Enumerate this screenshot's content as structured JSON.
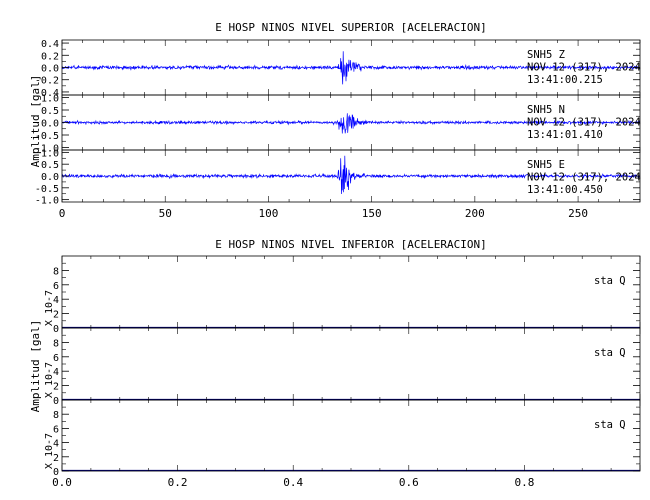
{
  "chart_data": [
    {
      "type": "line",
      "title": "E HOSP NINOS NIVEL SUPERIOR [ACELERACION]",
      "ylabel": "Amplitud [gal]",
      "xlabel": "",
      "xlim": [
        0,
        280
      ],
      "x_ticks": [
        0,
        50,
        100,
        150,
        200,
        250
      ],
      "line_color": "#0000ff",
      "panels": [
        {
          "ylim": [
            -0.45,
            0.45
          ],
          "y_ticks": [
            "0.4",
            "0.2",
            "0.0",
            "-0.2",
            "-0.4"
          ],
          "y_tick_values": [
            0.4,
            0.2,
            0.0,
            -0.2,
            -0.4
          ],
          "labels": [
            "SNH5   Z",
            "NOV 12 (317), 2024",
            "13:41:00.215"
          ],
          "noise_amplitude": 0.03,
          "event": {
            "onset": 133,
            "peak_time": 136,
            "peak_amplitude": 0.38
          }
        },
        {
          "ylim": [
            -1.1,
            1.1
          ],
          "y_ticks": [
            "1.0",
            "0.5",
            "0.0",
            "-0.5",
            "-1.0"
          ],
          "y_tick_values": [
            1.0,
            0.5,
            0.0,
            -0.5,
            -1.0
          ],
          "labels": [
            "SNH5   N",
            "NOV 12 (317), 2024",
            "13:41:01.410"
          ],
          "noise_amplitude": 0.06,
          "event": {
            "onset": 133,
            "peak_time": 137,
            "peak_amplitude": 0.75
          }
        },
        {
          "ylim": [
            -1.1,
            1.1
          ],
          "y_ticks": [
            "1.0",
            "0.5",
            "0.0",
            "-0.5",
            "-1.0"
          ],
          "y_tick_values": [
            1.0,
            0.5,
            0.0,
            -0.5,
            -1.0
          ],
          "labels": [
            "SNH5   E",
            "NOV 12 (317), 2024",
            "13:41:00.450"
          ],
          "noise_amplitude": 0.07,
          "event": {
            "onset": 133,
            "peak_time": 136,
            "peak_amplitude": 0.9
          }
        }
      ]
    },
    {
      "type": "line",
      "title": "E HOSP NINOS NIVEL INFERIOR [ACELERACION]",
      "ylabel": "Amplitud [gal]",
      "xlabel": "",
      "xlim": [
        0,
        1
      ],
      "x_ticks": [
        0.0,
        0.2,
        0.4,
        0.6,
        0.8
      ],
      "x_tick_labels": [
        "0.0",
        "0.2",
        "0.4",
        "0.6",
        "0.8"
      ],
      "line_color": "#000080",
      "panels": [
        {
          "ylim": [
            0,
            10
          ],
          "y_ticks": [
            "8",
            "6",
            "4",
            "2",
            "0"
          ],
          "y_tick_values": [
            8,
            6,
            4,
            2,
            0
          ],
          "scale_label": "X 10-7",
          "labels": [
            "sta   Q"
          ],
          "values": [
            0,
            0
          ]
        },
        {
          "ylim": [
            0,
            10
          ],
          "y_ticks": [
            "8",
            "6",
            "4",
            "2",
            "0"
          ],
          "y_tick_values": [
            8,
            6,
            4,
            2,
            0
          ],
          "scale_label": "X 10-7",
          "labels": [
            "sta   Q"
          ],
          "values": [
            0,
            0
          ]
        },
        {
          "ylim": [
            0,
            10
          ],
          "y_ticks": [
            "8",
            "6",
            "4",
            "2",
            "0"
          ],
          "y_tick_values": [
            8,
            6,
            4,
            2,
            0
          ],
          "scale_label": "X 10-7",
          "labels": [
            "sta   Q"
          ],
          "values": [
            0,
            0
          ]
        }
      ]
    }
  ]
}
